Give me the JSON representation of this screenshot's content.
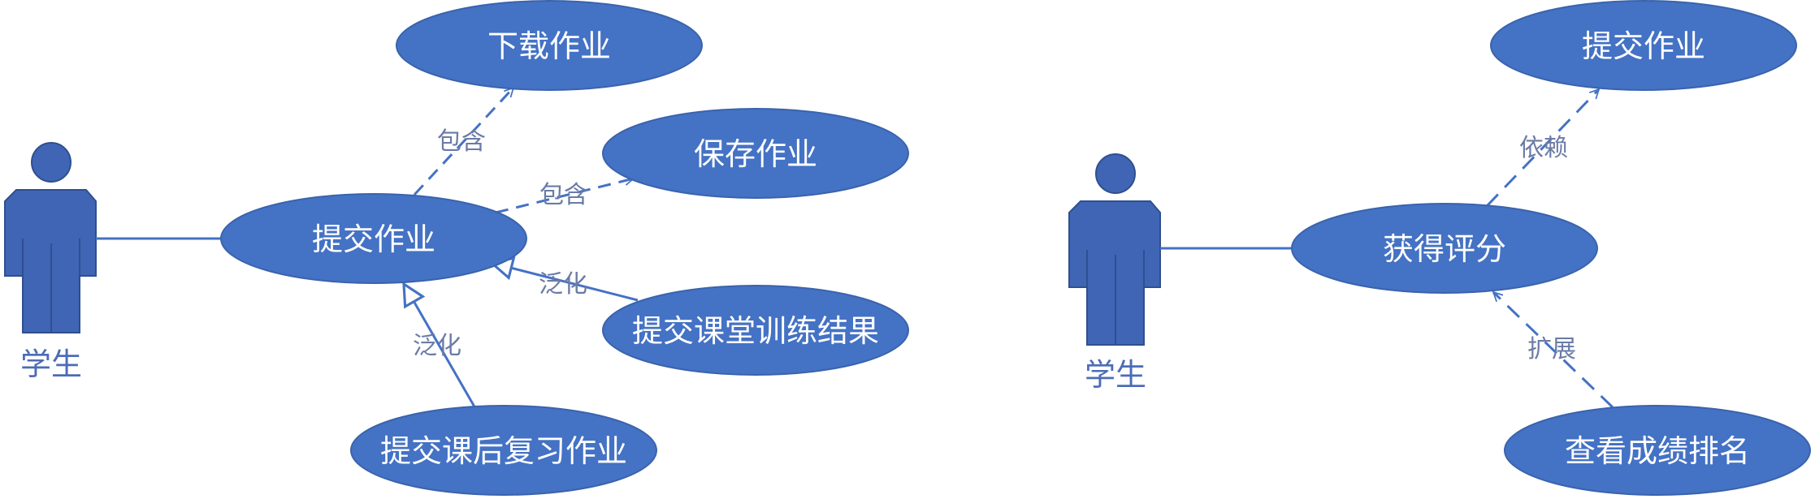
{
  "colors": {
    "usecase_fill": "#4472C4",
    "actor_fill": "#4065B4",
    "line": "#4472C4",
    "relation_label": "#6b7ba6",
    "usecase_text": "#ffffff"
  },
  "left_diagram": {
    "actor_label": "学生",
    "use_cases": {
      "submit_homework": "提交作业",
      "download_homework": "下载作业",
      "save_homework": "保存作业",
      "submit_class_training": "提交课堂训练结果",
      "submit_review_homework": "提交课后复习作业"
    },
    "relations": {
      "include_download": "包含",
      "include_save": "包含",
      "generalize_training": "泛化",
      "generalize_review": "泛化"
    }
  },
  "right_diagram": {
    "actor_label": "学生",
    "use_cases": {
      "get_score": "获得评分",
      "submit_homework": "提交作业",
      "view_ranking": "查看成绩排名"
    },
    "relations": {
      "depend": "依赖",
      "extend": "扩展"
    }
  }
}
